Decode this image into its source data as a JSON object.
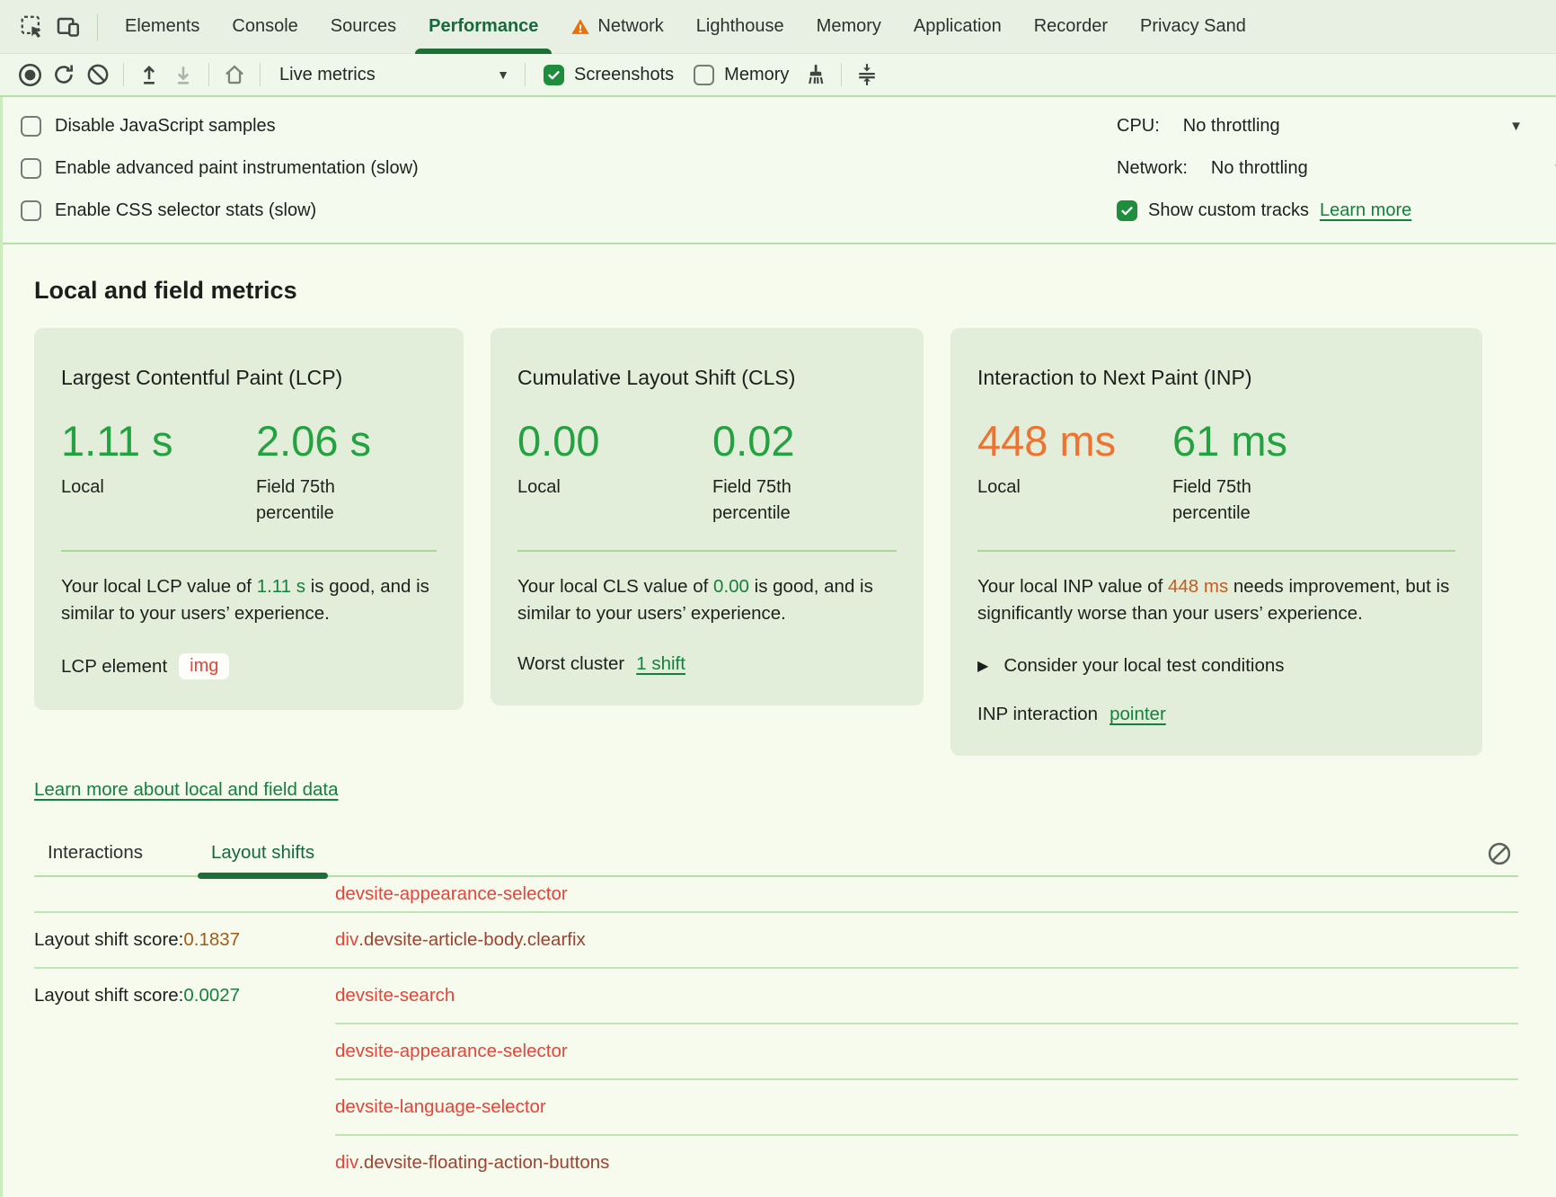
{
  "colors": {
    "accent_green_dark": "#1d6f36",
    "tab_active_green": "#15693a",
    "metric_green": "#24a140",
    "metric_orange": "#ef7330",
    "inline_green": "#15803d",
    "inline_orange": "#c75b1e",
    "link_green": "#15803d",
    "selector_red": "#e5453b",
    "selector_brown": "#9c4331",
    "score_orange": "#a05c17",
    "score_green": "#15803d",
    "warning_orange": "#e8710a",
    "checkbox_green": "#1e8e3e",
    "card_bg": "#e3eeda",
    "divider_green": "#b4dfa6"
  },
  "tabbar": {
    "tabs": [
      {
        "label": "Elements"
      },
      {
        "label": "Console"
      },
      {
        "label": "Sources"
      },
      {
        "label": "Performance",
        "active": true
      },
      {
        "label": "Network",
        "warning": true
      },
      {
        "label": "Lighthouse"
      },
      {
        "label": "Memory"
      },
      {
        "label": "Application"
      },
      {
        "label": "Recorder"
      },
      {
        "label": "Privacy Sand"
      }
    ]
  },
  "toolbar": {
    "live_metrics_label": "Live metrics",
    "screenshots_label": "Screenshots",
    "memory_label": "Memory"
  },
  "settings": {
    "checkboxes": [
      {
        "label": "Disable JavaScript samples",
        "checked": false
      },
      {
        "label": "Enable advanced paint instrumentation (slow)",
        "checked": false
      },
      {
        "label": "Enable CSS selector stats (slow)",
        "checked": false
      }
    ],
    "cpu_label": "CPU:",
    "cpu_value": "No throttling",
    "network_label": "Network:",
    "network_value": "No throttling",
    "custom_tracks_label": "Show custom tracks",
    "custom_tracks_checked": true,
    "learn_more_label": "Learn more"
  },
  "metrics": {
    "heading": "Local and field metrics",
    "cards": [
      {
        "title": "Largest Contentful Paint (LCP)",
        "local_value": "1.11 s",
        "local_label": "Local",
        "field_value": "2.06 s",
        "field_label": "Field 75th percentile",
        "desc_pre": "Your local LCP value of ",
        "desc_value": "1.11 s",
        "desc_post": " is good, and is similar to your users’ experience.",
        "footer_label": "LCP element",
        "footer_chip": "img"
      },
      {
        "title": "Cumulative Layout Shift (CLS)",
        "local_value": "0.00",
        "local_label": "Local",
        "field_value": "0.02",
        "field_label": "Field 75th percentile",
        "desc_pre": "Your local CLS value of ",
        "desc_value": "0.00",
        "desc_post": " is good, and is similar to your users’ experience.",
        "footer_label": "Worst cluster",
        "footer_link": "1 shift"
      },
      {
        "title": "Interaction to Next Paint (INP)",
        "local_value": "448 ms",
        "local_label": "Local",
        "field_value": "61 ms",
        "field_label": "Field 75th percentile",
        "desc_pre": "Your local INP value of ",
        "desc_value": "448 ms",
        "desc_post": " needs improvement, but is significantly worse than your users’ experience.",
        "expand_label": "Consider your local test conditions",
        "footer_label": "INP interaction",
        "footer_link": "pointer"
      }
    ],
    "learn_more_link": "Learn more about local and field data"
  },
  "logs": {
    "tabs": [
      {
        "label": "Interactions"
      },
      {
        "label": "Layout shifts",
        "active": true
      }
    ],
    "rows": [
      {
        "selector": "devsite-appearance-selector",
        "selector_color": "red"
      },
      {
        "score_label": "Layout shift score: ",
        "score_value": "0.1837",
        "score_color": "orange",
        "tag": "div",
        "selector": ".devsite-article-body.clearfix",
        "selector_color": "brown"
      },
      {
        "score_label": "Layout shift score: ",
        "score_value": "0.0027",
        "score_color": "green",
        "selector": "devsite-search",
        "selector_color": "red"
      },
      {
        "selector": "devsite-appearance-selector",
        "selector_color": "red"
      },
      {
        "selector": "devsite-language-selector",
        "selector_color": "red"
      },
      {
        "tag": "div",
        "selector": ".devsite-floating-action-buttons",
        "selector_color": "brown"
      }
    ]
  }
}
